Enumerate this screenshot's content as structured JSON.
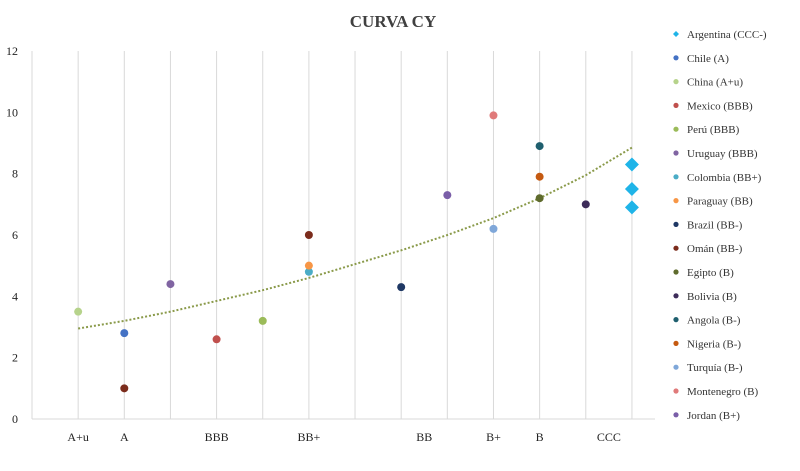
{
  "chart_data": {
    "type": "scatter",
    "title": "CURVA CY",
    "xlabel": "",
    "ylabel": "",
    "ylim": [
      0,
      12
    ],
    "yticks": [
      0,
      2,
      4,
      6,
      8,
      10,
      12
    ],
    "grid": "vertical",
    "legend": "right",
    "categories": [
      {
        "label": "A+u",
        "x": 1
      },
      {
        "label": "A",
        "x": 2
      },
      {
        "label": "BBB",
        "x": 4
      },
      {
        "label": "BB+",
        "x": 6
      },
      {
        "label": "BB",
        "x": 8.5
      },
      {
        "label": "B+",
        "x": 10
      },
      {
        "label": "B",
        "x": 11
      },
      {
        "label": "CCC",
        "x": 12.5
      }
    ],
    "xlim": [
      0,
      13.5
    ],
    "series": [
      {
        "name": "Argentina (CCC-)",
        "color": "#1fb4e8",
        "marker": "diamond",
        "points": [
          {
            "x": 13,
            "y": 8.3
          },
          {
            "x": 13,
            "y": 7.5
          },
          {
            "x": 13,
            "y": 6.9
          }
        ]
      },
      {
        "name": "Chile (A)",
        "color": "#4472c4",
        "marker": "circle",
        "points": [
          {
            "x": 2,
            "y": 2.8
          }
        ]
      },
      {
        "name": "China (A+u)",
        "color": "#b6d38b",
        "marker": "circle",
        "points": [
          {
            "x": 1,
            "y": 3.5
          }
        ]
      },
      {
        "name": "Mexico (BBB)",
        "color": "#c0504d",
        "marker": "circle",
        "points": [
          {
            "x": 4,
            "y": 2.6
          }
        ]
      },
      {
        "name": "Perú (BBB)",
        "color": "#9bbb59",
        "marker": "circle",
        "points": [
          {
            "x": 5,
            "y": 3.2
          }
        ]
      },
      {
        "name": "Uruguay (BBB)",
        "color": "#8064a2",
        "marker": "circle",
        "points": [
          {
            "x": 3,
            "y": 4.4
          }
        ]
      },
      {
        "name": "Colombia (BB+)",
        "color": "#4bacc6",
        "marker": "circle",
        "points": [
          {
            "x": 6,
            "y": 4.8
          }
        ]
      },
      {
        "name": "Paraguay (BB)",
        "color": "#f79646",
        "marker": "circle",
        "points": [
          {
            "x": 6,
            "y": 5.0
          }
        ]
      },
      {
        "name": "Brazil (BB-)",
        "color": "#1f3864",
        "marker": "circle",
        "points": [
          {
            "x": 8,
            "y": 4.3
          }
        ]
      },
      {
        "name": "Omán (BB-)",
        "color": "#7b2c1c",
        "marker": "circle",
        "points": [
          {
            "x": 6,
            "y": 6.0
          },
          {
            "x": 2,
            "y": 1.0
          }
        ]
      },
      {
        "name": "Egipto (B)",
        "color": "#5f6b2d",
        "marker": "circle",
        "points": [
          {
            "x": 11,
            "y": 7.2
          }
        ]
      },
      {
        "name": "Bolivia (B)",
        "color": "#3d2c5a",
        "marker": "circle",
        "points": [
          {
            "x": 12,
            "y": 7.0
          }
        ]
      },
      {
        "name": "Angola (B-)",
        "color": "#1f5f6e",
        "marker": "circle",
        "points": [
          {
            "x": 11,
            "y": 8.9
          }
        ]
      },
      {
        "name": "Nigeria (B-)",
        "color": "#c55a11",
        "marker": "circle",
        "points": [
          {
            "x": 11,
            "y": 7.9
          }
        ]
      },
      {
        "name": "Turquía (B-)",
        "color": "#7fa7d9",
        "marker": "circle",
        "points": [
          {
            "x": 10,
            "y": 6.2
          }
        ]
      },
      {
        "name": "Montenegro (B)",
        "color": "#e07a7a",
        "marker": "circle",
        "points": [
          {
            "x": 10,
            "y": 9.9
          }
        ]
      },
      {
        "name": "Jordan (B+)",
        "color": "#7a5ea8",
        "marker": "circle",
        "points": [
          {
            "x": 9,
            "y": 7.3
          }
        ]
      }
    ],
    "trendline": {
      "type": "polynomial",
      "style": "dotted",
      "color": "#8a9a4a",
      "points": [
        {
          "x": 1,
          "y": 2.95
        },
        {
          "x": 2,
          "y": 3.2
        },
        {
          "x": 3,
          "y": 3.5
        },
        {
          "x": 4,
          "y": 3.85
        },
        {
          "x": 5,
          "y": 4.2
        },
        {
          "x": 6,
          "y": 4.6
        },
        {
          "x": 7,
          "y": 5.05
        },
        {
          "x": 8,
          "y": 5.5
        },
        {
          "x": 9,
          "y": 6.0
        },
        {
          "x": 10,
          "y": 6.55
        },
        {
          "x": 11,
          "y": 7.2
        },
        {
          "x": 12,
          "y": 7.95
        },
        {
          "x": 13,
          "y": 8.85
        }
      ]
    }
  }
}
